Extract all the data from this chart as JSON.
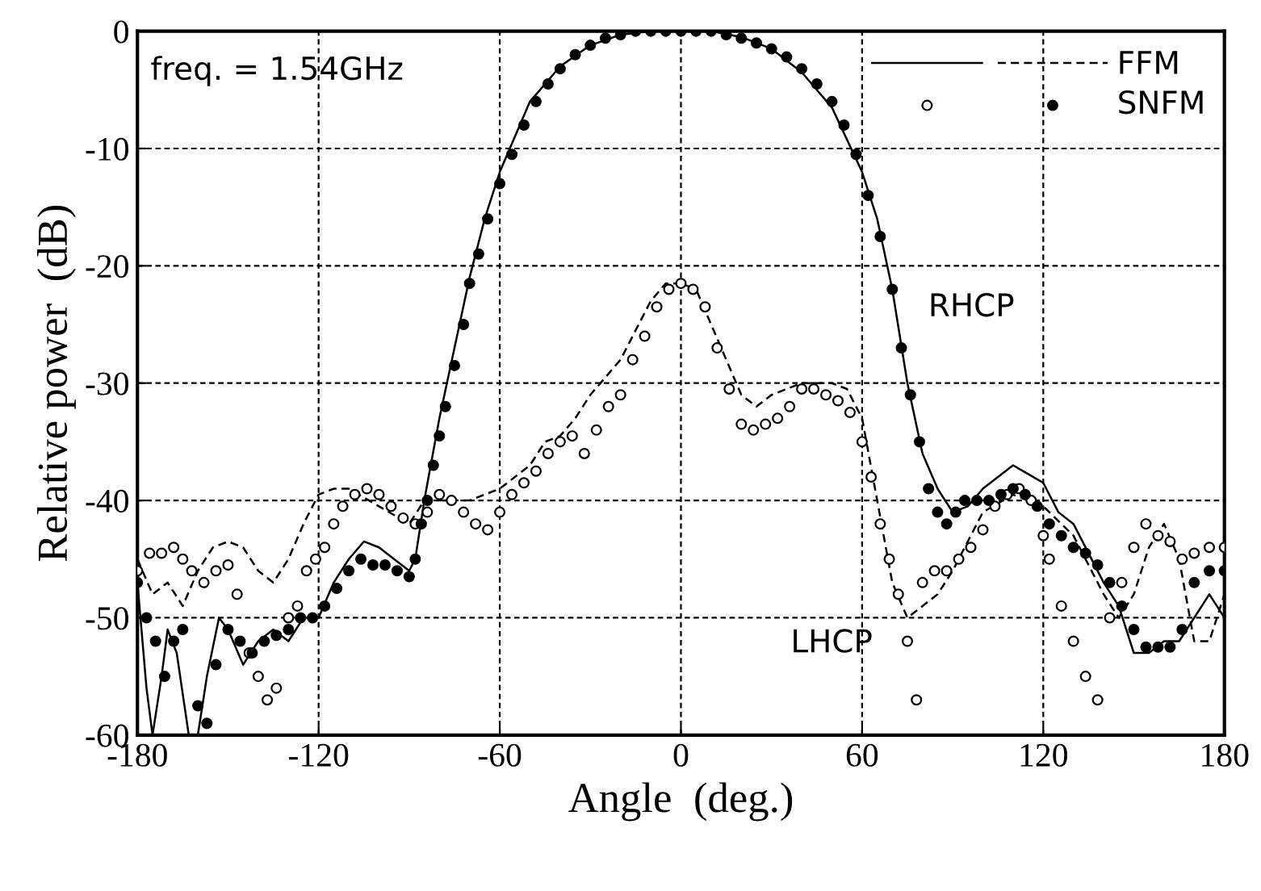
{
  "chart_data": {
    "type": "line",
    "xlabel": "Angle  (deg.)",
    "ylabel": "Relative power  (dB)",
    "xlim": [
      -180,
      180
    ],
    "ylim": [
      -60,
      0
    ],
    "xticks": [
      -180,
      -120,
      -60,
      0,
      60,
      120,
      180
    ],
    "yticks": [
      -60,
      -50,
      -40,
      -30,
      -20,
      -10,
      0
    ],
    "grid": true,
    "legend": "top right",
    "annotations": [
      "freq. = 1.54GHz",
      {
        "text": "RHCP",
        "x": 73,
        "y": -27
      },
      {
        "text": "LHCP",
        "x": 72,
        "y": -48
      }
    ],
    "series": [
      {
        "line_style": "solid",
        "color": "#000000",
        "x": [
          -180,
          -177,
          -175,
          -172,
          -170,
          -167,
          -163,
          -160,
          -157,
          -153,
          -150,
          -145,
          -140,
          -135,
          -130,
          -125,
          -120,
          -115,
          -110,
          -105,
          -100,
          -95,
          -90,
          -88,
          -85,
          -80,
          -75,
          -70,
          -65,
          -60,
          -50,
          -40,
          -30,
          -20,
          -10,
          0,
          10,
          20,
          30,
          40,
          50,
          60,
          65,
          70,
          75,
          80,
          85,
          90,
          95,
          100,
          110,
          120,
          125,
          130,
          140,
          145,
          150,
          155,
          160,
          165,
          170,
          175,
          180
        ],
        "values": [
          -47,
          -56,
          -60,
          -55,
          -51,
          -53,
          -60,
          -60,
          -55,
          -50,
          -51,
          -54,
          -52,
          -51,
          -52,
          -50,
          -50,
          -47,
          -45,
          -43.5,
          -44,
          -45,
          -46,
          -45,
          -40,
          -33,
          -27,
          -21,
          -16,
          -12,
          -6,
          -3,
          -1.2,
          -0.3,
          0,
          0,
          0,
          -0.5,
          -1.5,
          -3.5,
          -6.5,
          -12,
          -16,
          -22,
          -30,
          -36,
          -39,
          -41,
          -40.5,
          -39,
          -37,
          -38.5,
          -41,
          -42,
          -47,
          -49,
          -53,
          -53,
          -52,
          -52,
          -50,
          -48,
          -50
        ]
      },
      {
        "name": "FFM",
        "line_style": "dashed",
        "color": "#000000",
        "x": [
          -180,
          -175,
          -170,
          -165,
          -160,
          -155,
          -150,
          -145,
          -140,
          -135,
          -130,
          -125,
          -120,
          -115,
          -110,
          -100,
          -90,
          -85,
          -80,
          -70,
          -60,
          -50,
          -45,
          -40,
          -35,
          -30,
          -20,
          -10,
          -5,
          0,
          5,
          10,
          15,
          20,
          25,
          30,
          40,
          50,
          55,
          60,
          65,
          70,
          75,
          80,
          85,
          90,
          100,
          110,
          120,
          130,
          140,
          145,
          150,
          155,
          160,
          165,
          170,
          175,
          180
        ],
        "values": [
          -45,
          -48,
          -47,
          -49,
          -46,
          -44,
          -43.5,
          -44,
          -46,
          -47,
          -45,
          -42,
          -39.5,
          -39,
          -39,
          -40.5,
          -42,
          -40,
          -40,
          -40,
          -39,
          -37,
          -35,
          -34.5,
          -33,
          -31,
          -28,
          -23,
          -21.5,
          -21.5,
          -22,
          -25,
          -28,
          -31,
          -32,
          -31,
          -30,
          -30,
          -30.5,
          -33,
          -40,
          -47,
          -50,
          -49,
          -48,
          -46,
          -41,
          -39.5,
          -40.5,
          -43,
          -48,
          -50,
          -48,
          -44,
          -42,
          -45,
          -52,
          -52,
          -48
        ]
      },
      {
        "type": "scatter",
        "marker": "circle_open",
        "color": "#000000",
        "x": [
          -180,
          -176,
          -172,
          -168,
          -165,
          -162,
          -158,
          -154,
          -150,
          -147,
          -143,
          -140,
          -137,
          -134,
          -130,
          -127,
          -124,
          -121,
          -118,
          -115,
          -112,
          -108,
          -104,
          -100,
          -96,
          -92,
          -88,
          -84,
          -80,
          -76,
          -72,
          -68,
          -64,
          -60,
          -56,
          -52,
          -48,
          -44,
          -40,
          -36,
          -32,
          -28,
          -24,
          -20,
          -16,
          -12,
          -8,
          -4,
          0,
          4,
          8,
          12,
          16,
          20,
          24,
          28,
          32,
          36,
          40,
          44,
          48,
          52,
          56,
          60,
          63,
          66,
          69,
          72,
          75,
          78,
          80,
          84,
          88,
          92,
          96,
          100,
          104,
          108,
          112,
          116,
          120,
          122,
          126,
          130,
          134,
          138,
          142,
          146,
          150,
          154,
          158,
          162,
          166,
          170,
          175,
          180
        ],
        "values": [
          -46,
          -44.5,
          -44.5,
          -44,
          -45,
          -46,
          -47,
          -46,
          -45.5,
          -48,
          -53,
          -55,
          -57,
          -56,
          -50,
          -49,
          -46,
          -45,
          -44,
          -42,
          -40.5,
          -39.5,
          -39,
          -39.5,
          -40.5,
          -41.5,
          -42,
          -41,
          -39.5,
          -40,
          -41,
          -42,
          -42.5,
          -41,
          -39.5,
          -38.5,
          -37.5,
          -36,
          -35,
          -34.5,
          -36,
          -34,
          -32,
          -31,
          -28,
          -26,
          -23.5,
          -22,
          -21.5,
          -22,
          -23.5,
          -27,
          -30.5,
          -33.5,
          -34,
          -33.5,
          -33,
          -32,
          -30.5,
          -30.5,
          -31,
          -31.5,
          -32.5,
          -35,
          -38,
          -42,
          -45,
          -48,
          -52,
          -57,
          -47,
          -46,
          -46,
          -45,
          -44,
          -42.5,
          -40.5,
          -39.5,
          -39,
          -40,
          -43,
          -45,
          -49,
          -52,
          -55,
          -57,
          -50,
          -47,
          -44,
          -42,
          -43,
          -43.5,
          -45,
          -44.5,
          -44,
          -44
        ]
      },
      {
        "name": "SNFM",
        "type": "scatter",
        "marker": "circle",
        "color": "#000000",
        "x": [
          -180,
          -177,
          -174,
          -171,
          -168,
          -165,
          -160,
          -157,
          -154,
          -150,
          -146,
          -142,
          -138,
          -134,
          -130,
          -126,
          -122,
          -118,
          -114,
          -110,
          -106,
          -102,
          -98,
          -94,
          -90,
          -88,
          -86,
          -84,
          -82,
          -80,
          -78,
          -75,
          -72,
          -70,
          -67,
          -64,
          -60,
          -56,
          -52,
          -48,
          -44,
          -40,
          -35,
          -30,
          -25,
          -20,
          -15,
          -10,
          -5,
          0,
          5,
          10,
          15,
          20,
          25,
          30,
          35,
          40,
          45,
          50,
          54,
          58,
          62,
          66,
          70,
          73,
          76,
          79,
          82,
          85,
          88,
          91,
          94,
          98,
          102,
          106,
          110,
          114,
          118,
          122,
          126,
          130,
          134,
          138,
          142,
          146,
          150,
          154,
          158,
          162,
          166,
          170,
          175,
          180
        ],
        "values": [
          -47,
          -50,
          -52,
          -55,
          -52,
          -51,
          -57.5,
          -59,
          -54,
          -51,
          -52,
          -53,
          -52,
          -51.5,
          -51,
          -50,
          -50,
          -49,
          -47.5,
          -46,
          -45,
          -45.5,
          -45.5,
          -46,
          -46.5,
          -45,
          -42,
          -40,
          -37,
          -34.5,
          -32,
          -28.5,
          -25,
          -21.5,
          -19,
          -16,
          -13,
          -10.5,
          -8,
          -6,
          -4.5,
          -3.2,
          -2,
          -1.2,
          -0.6,
          -0.3,
          0,
          0,
          0,
          0,
          0,
          0,
          -0.3,
          -0.6,
          -1,
          -1.5,
          -2.2,
          -3.2,
          -4.5,
          -6,
          -8,
          -10.5,
          -14,
          -17.5,
          -22,
          -27,
          -31,
          -35,
          -39,
          -41,
          -42,
          -41,
          -40,
          -40,
          -40,
          -39.5,
          -39,
          -39.5,
          -40.5,
          -42,
          -43,
          -44,
          -44.5,
          -45.5,
          -47,
          -49,
          -51,
          -52.5,
          -52.5,
          -52.5,
          -51,
          -47,
          -46,
          -46
        ]
      }
    ]
  }
}
